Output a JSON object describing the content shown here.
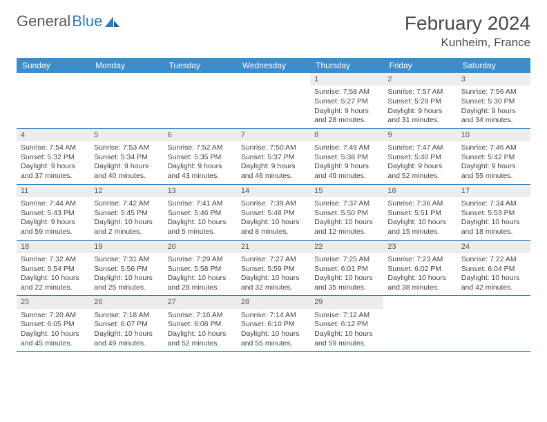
{
  "brand": {
    "part1": "General",
    "part2": "Blue"
  },
  "title": {
    "month": "February 2024",
    "location": "Kunheim, France"
  },
  "colors": {
    "header_bg": "#3c8dcc",
    "header_text": "#ffffff",
    "daynum_bg": "#ededed",
    "rule": "#2f7bbf",
    "brand_gray": "#5a5a5a",
    "brand_blue": "#2f7bbf"
  },
  "fonts": {
    "title_pt": 28,
    "location_pt": 17,
    "header_pt": 12,
    "cell_pt": 10.5
  },
  "day_labels": [
    "Sunday",
    "Monday",
    "Tuesday",
    "Wednesday",
    "Thursday",
    "Friday",
    "Saturday"
  ],
  "weeks": [
    [
      {
        "empty": true
      },
      {
        "empty": true
      },
      {
        "empty": true
      },
      {
        "empty": true
      },
      {
        "day": "1",
        "sunrise": "Sunrise: 7:58 AM",
        "sunset": "Sunset: 5:27 PM",
        "dl1": "Daylight: 9 hours",
        "dl2": "and 28 minutes."
      },
      {
        "day": "2",
        "sunrise": "Sunrise: 7:57 AM",
        "sunset": "Sunset: 5:29 PM",
        "dl1": "Daylight: 9 hours",
        "dl2": "and 31 minutes."
      },
      {
        "day": "3",
        "sunrise": "Sunrise: 7:56 AM",
        "sunset": "Sunset: 5:30 PM",
        "dl1": "Daylight: 9 hours",
        "dl2": "and 34 minutes."
      }
    ],
    [
      {
        "day": "4",
        "sunrise": "Sunrise: 7:54 AM",
        "sunset": "Sunset: 5:32 PM",
        "dl1": "Daylight: 9 hours",
        "dl2": "and 37 minutes."
      },
      {
        "day": "5",
        "sunrise": "Sunrise: 7:53 AM",
        "sunset": "Sunset: 5:34 PM",
        "dl1": "Daylight: 9 hours",
        "dl2": "and 40 minutes."
      },
      {
        "day": "6",
        "sunrise": "Sunrise: 7:52 AM",
        "sunset": "Sunset: 5:35 PM",
        "dl1": "Daylight: 9 hours",
        "dl2": "and 43 minutes."
      },
      {
        "day": "7",
        "sunrise": "Sunrise: 7:50 AM",
        "sunset": "Sunset: 5:37 PM",
        "dl1": "Daylight: 9 hours",
        "dl2": "and 46 minutes."
      },
      {
        "day": "8",
        "sunrise": "Sunrise: 7:49 AM",
        "sunset": "Sunset: 5:38 PM",
        "dl1": "Daylight: 9 hours",
        "dl2": "and 49 minutes."
      },
      {
        "day": "9",
        "sunrise": "Sunrise: 7:47 AM",
        "sunset": "Sunset: 5:40 PM",
        "dl1": "Daylight: 9 hours",
        "dl2": "and 52 minutes."
      },
      {
        "day": "10",
        "sunrise": "Sunrise: 7:46 AM",
        "sunset": "Sunset: 5:42 PM",
        "dl1": "Daylight: 9 hours",
        "dl2": "and 55 minutes."
      }
    ],
    [
      {
        "day": "11",
        "sunrise": "Sunrise: 7:44 AM",
        "sunset": "Sunset: 5:43 PM",
        "dl1": "Daylight: 9 hours",
        "dl2": "and 59 minutes."
      },
      {
        "day": "12",
        "sunrise": "Sunrise: 7:42 AM",
        "sunset": "Sunset: 5:45 PM",
        "dl1": "Daylight: 10 hours",
        "dl2": "and 2 minutes."
      },
      {
        "day": "13",
        "sunrise": "Sunrise: 7:41 AM",
        "sunset": "Sunset: 5:46 PM",
        "dl1": "Daylight: 10 hours",
        "dl2": "and 5 minutes."
      },
      {
        "day": "14",
        "sunrise": "Sunrise: 7:39 AM",
        "sunset": "Sunset: 5:48 PM",
        "dl1": "Daylight: 10 hours",
        "dl2": "and 8 minutes."
      },
      {
        "day": "15",
        "sunrise": "Sunrise: 7:37 AM",
        "sunset": "Sunset: 5:50 PM",
        "dl1": "Daylight: 10 hours",
        "dl2": "and 12 minutes."
      },
      {
        "day": "16",
        "sunrise": "Sunrise: 7:36 AM",
        "sunset": "Sunset: 5:51 PM",
        "dl1": "Daylight: 10 hours",
        "dl2": "and 15 minutes."
      },
      {
        "day": "17",
        "sunrise": "Sunrise: 7:34 AM",
        "sunset": "Sunset: 5:53 PM",
        "dl1": "Daylight: 10 hours",
        "dl2": "and 18 minutes."
      }
    ],
    [
      {
        "day": "18",
        "sunrise": "Sunrise: 7:32 AM",
        "sunset": "Sunset: 5:54 PM",
        "dl1": "Daylight: 10 hours",
        "dl2": "and 22 minutes."
      },
      {
        "day": "19",
        "sunrise": "Sunrise: 7:31 AM",
        "sunset": "Sunset: 5:56 PM",
        "dl1": "Daylight: 10 hours",
        "dl2": "and 25 minutes."
      },
      {
        "day": "20",
        "sunrise": "Sunrise: 7:29 AM",
        "sunset": "Sunset: 5:58 PM",
        "dl1": "Daylight: 10 hours",
        "dl2": "and 28 minutes."
      },
      {
        "day": "21",
        "sunrise": "Sunrise: 7:27 AM",
        "sunset": "Sunset: 5:59 PM",
        "dl1": "Daylight: 10 hours",
        "dl2": "and 32 minutes."
      },
      {
        "day": "22",
        "sunrise": "Sunrise: 7:25 AM",
        "sunset": "Sunset: 6:01 PM",
        "dl1": "Daylight: 10 hours",
        "dl2": "and 35 minutes."
      },
      {
        "day": "23",
        "sunrise": "Sunrise: 7:23 AM",
        "sunset": "Sunset: 6:02 PM",
        "dl1": "Daylight: 10 hours",
        "dl2": "and 38 minutes."
      },
      {
        "day": "24",
        "sunrise": "Sunrise: 7:22 AM",
        "sunset": "Sunset: 6:04 PM",
        "dl1": "Daylight: 10 hours",
        "dl2": "and 42 minutes."
      }
    ],
    [
      {
        "day": "25",
        "sunrise": "Sunrise: 7:20 AM",
        "sunset": "Sunset: 6:05 PM",
        "dl1": "Daylight: 10 hours",
        "dl2": "and 45 minutes."
      },
      {
        "day": "26",
        "sunrise": "Sunrise: 7:18 AM",
        "sunset": "Sunset: 6:07 PM",
        "dl1": "Daylight: 10 hours",
        "dl2": "and 49 minutes."
      },
      {
        "day": "27",
        "sunrise": "Sunrise: 7:16 AM",
        "sunset": "Sunset: 6:08 PM",
        "dl1": "Daylight: 10 hours",
        "dl2": "and 52 minutes."
      },
      {
        "day": "28",
        "sunrise": "Sunrise: 7:14 AM",
        "sunset": "Sunset: 6:10 PM",
        "dl1": "Daylight: 10 hours",
        "dl2": "and 55 minutes."
      },
      {
        "day": "29",
        "sunrise": "Sunrise: 7:12 AM",
        "sunset": "Sunset: 6:12 PM",
        "dl1": "Daylight: 10 hours",
        "dl2": "and 59 minutes."
      },
      {
        "empty": true
      },
      {
        "empty": true
      }
    ]
  ]
}
